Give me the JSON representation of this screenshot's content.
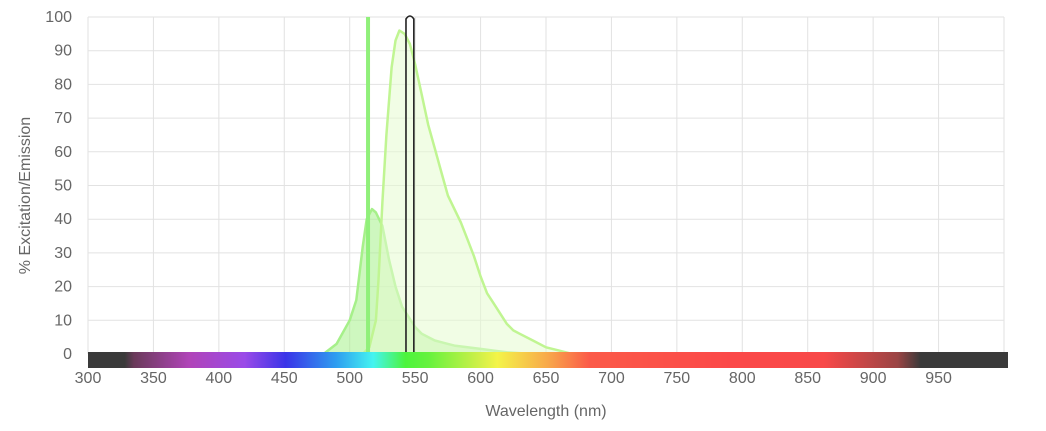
{
  "chart_data": {
    "type": "area",
    "xlabel": "Wavelength (nm)",
    "ylabel": "% Excitation/Emission",
    "xlim": [
      300,
      1000
    ],
    "ylim": [
      0,
      100
    ],
    "x_ticks": [
      300,
      350,
      400,
      450,
      500,
      550,
      600,
      650,
      700,
      750,
      800,
      850,
      900,
      950
    ],
    "y_ticks": [
      0,
      10,
      20,
      30,
      40,
      50,
      60,
      70,
      80,
      90,
      100
    ],
    "grid": true,
    "legend": "none",
    "spectrum_bar": true,
    "series": [
      {
        "kind": "excitation",
        "color": "#a6f08a",
        "fill": "#a6f08a",
        "points": [
          [
            480,
            0
          ],
          [
            490,
            3
          ],
          [
            500,
            10
          ],
          [
            505,
            16
          ],
          [
            510,
            32
          ],
          [
            513,
            40
          ],
          [
            517,
            43
          ],
          [
            520,
            42
          ],
          [
            525,
            38
          ],
          [
            530,
            28
          ],
          [
            535,
            20
          ],
          [
            540,
            14
          ],
          [
            545,
            11
          ],
          [
            550,
            8
          ],
          [
            555,
            6
          ],
          [
            560,
            5
          ],
          [
            565,
            4
          ],
          [
            570,
            3.5
          ],
          [
            575,
            3
          ],
          [
            580,
            2.5
          ],
          [
            590,
            2
          ],
          [
            600,
            1.5
          ],
          [
            610,
            1
          ],
          [
            620,
            0.5
          ],
          [
            640,
            0
          ]
        ]
      },
      {
        "kind": "emission",
        "color": "#c0f592",
        "fill": "#e6fbcf",
        "points": [
          [
            510,
            0
          ],
          [
            515,
            2
          ],
          [
            520,
            10
          ],
          [
            522,
            22
          ],
          [
            525,
            45
          ],
          [
            528,
            65
          ],
          [
            532,
            85
          ],
          [
            535,
            93
          ],
          [
            538,
            96
          ],
          [
            542,
            95
          ],
          [
            546,
            92
          ],
          [
            550,
            86
          ],
          [
            555,
            77
          ],
          [
            560,
            68
          ],
          [
            565,
            61
          ],
          [
            570,
            54
          ],
          [
            575,
            47
          ],
          [
            580,
            43
          ],
          [
            585,
            39
          ],
          [
            590,
            34
          ],
          [
            595,
            29
          ],
          [
            600,
            23
          ],
          [
            605,
            18
          ],
          [
            610,
            15
          ],
          [
            615,
            12
          ],
          [
            620,
            9
          ],
          [
            625,
            7
          ],
          [
            630,
            6
          ],
          [
            640,
            4
          ],
          [
            650,
            2
          ],
          [
            660,
            1
          ],
          [
            670,
            0
          ]
        ]
      }
    ],
    "markers": [
      {
        "kind": "excitation-laser",
        "wavelength": 514,
        "color": "#90f07a"
      },
      {
        "kind": "emission-filter",
        "center": 546,
        "low": 543,
        "high": 549,
        "color": "#222222"
      }
    ]
  }
}
